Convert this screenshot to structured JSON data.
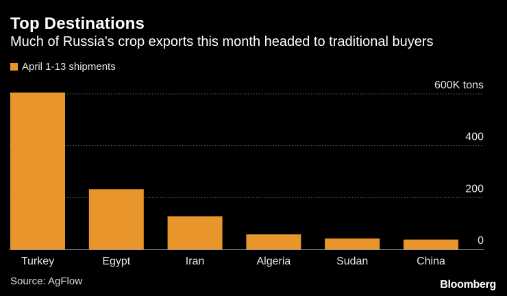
{
  "header": {
    "title": "Top Destinations",
    "subtitle": "Much of Russia's crop exports this month headed to traditional buyers"
  },
  "legend": {
    "label": "April 1-13 shipments"
  },
  "footer": {
    "source": "Source: AgFlow",
    "brand": "Bloomberg"
  },
  "colors": {
    "bar": "#E8952B",
    "grid": "#6b6b6b",
    "axis": "#9a9a9a",
    "background": "#000000"
  },
  "chart_data": {
    "type": "bar",
    "title": "Top Destinations",
    "subtitle": "Much of Russia's crop exports this month headed to traditional buyers",
    "categories": [
      "Turkey",
      "Egypt",
      "Iran",
      "Algeria",
      "Sudan",
      "China"
    ],
    "series": [
      {
        "name": "April 1-13 shipments",
        "values": [
          605,
          232,
          128,
          58,
          42,
          38
        ]
      }
    ],
    "ylim": [
      0,
      600
    ],
    "yticks": [
      0,
      200,
      400,
      600
    ],
    "ytick_labels": [
      "0",
      "200",
      "400",
      "600K tons"
    ],
    "xlabel": "",
    "ylabel": "",
    "grid": true,
    "legend_position": "top-left",
    "y_axis_position": "right"
  }
}
